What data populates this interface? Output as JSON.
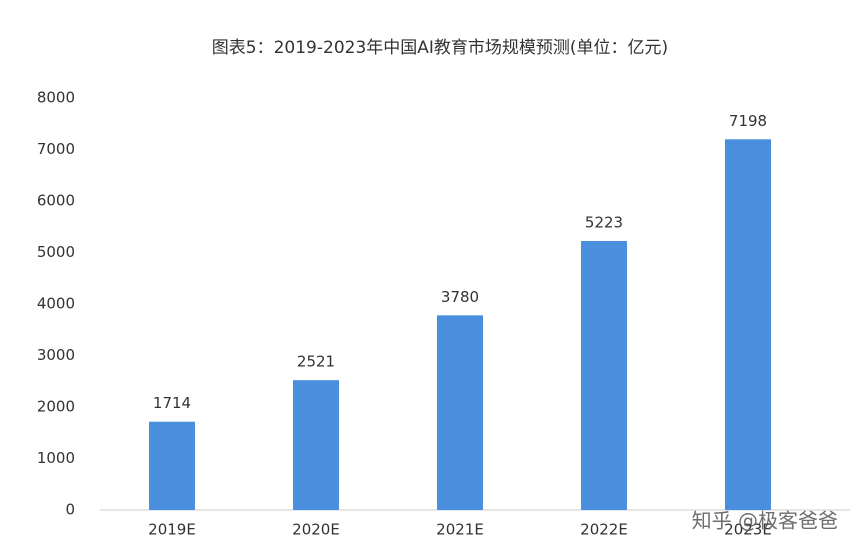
{
  "chart_data": {
    "type": "bar",
    "title": "图表5：2019-2023年中国AI教育市场规模预测(单位：亿元)",
    "categories": [
      "2019E",
      "2020E",
      "2021E",
      "2022E",
      "2023E"
    ],
    "values": [
      1714,
      2521,
      3780,
      5223,
      7198
    ],
    "color": "#4a8fde",
    "ylim": [
      0,
      8000
    ],
    "yticks": [
      0,
      1000,
      2000,
      3000,
      4000,
      5000,
      6000,
      7000,
      8000
    ],
    "grid": false,
    "watermark": "知乎 @极客爸爸"
  }
}
